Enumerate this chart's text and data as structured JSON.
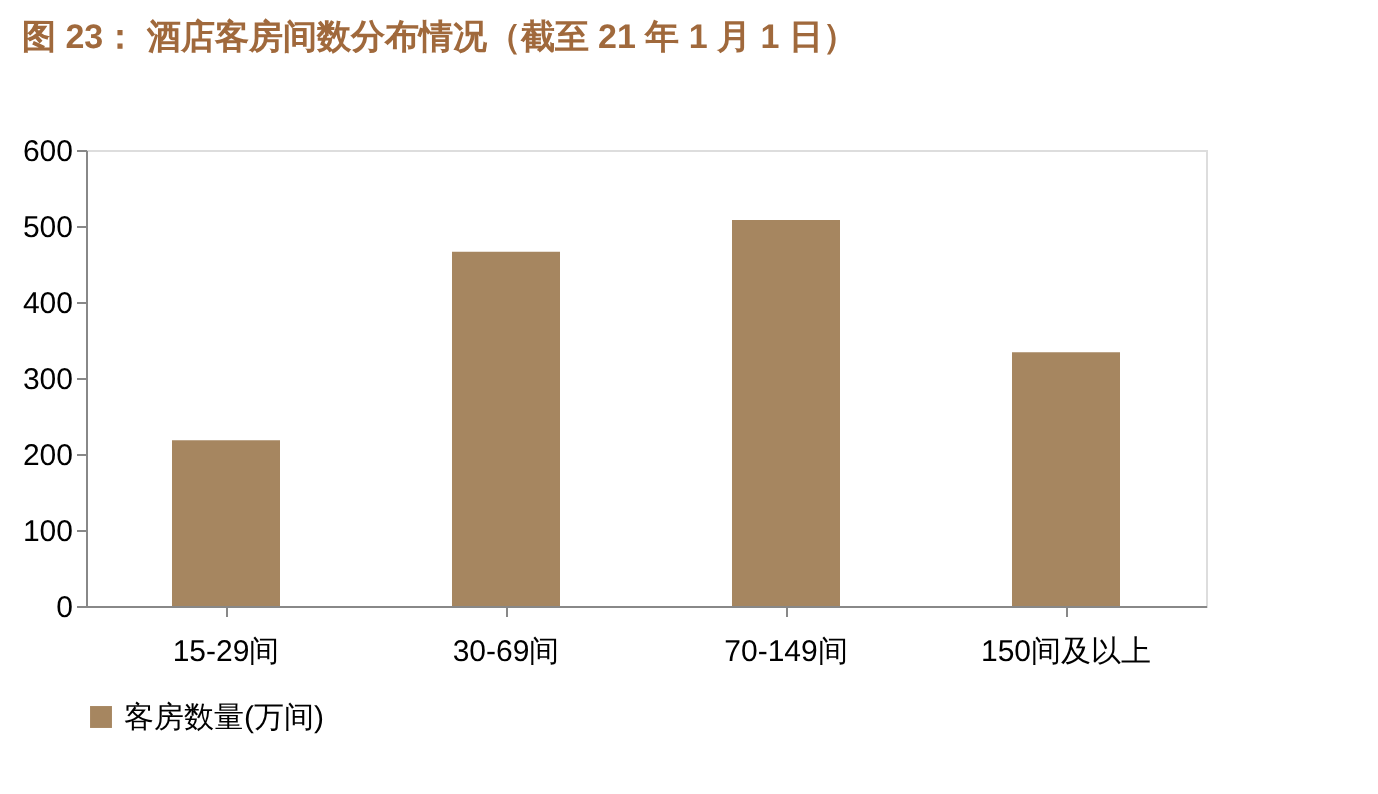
{
  "chart_data": {
    "type": "bar",
    "title": "图 23：  酒店客房间数分布情况（截至 21 年 1 月 1 日）",
    "categories": [
      "15-29间",
      "30-69间",
      "70-149间",
      "150间及以上"
    ],
    "series": [
      {
        "name": "客房数量(万间)",
        "color": "#a68660",
        "values": [
          218,
          466,
          508,
          334
        ]
      }
    ],
    "ylim": [
      0,
      600
    ],
    "yticks": [
      0,
      100,
      200,
      300,
      400,
      500,
      600
    ],
    "grid": false,
    "legend": "bottom"
  }
}
